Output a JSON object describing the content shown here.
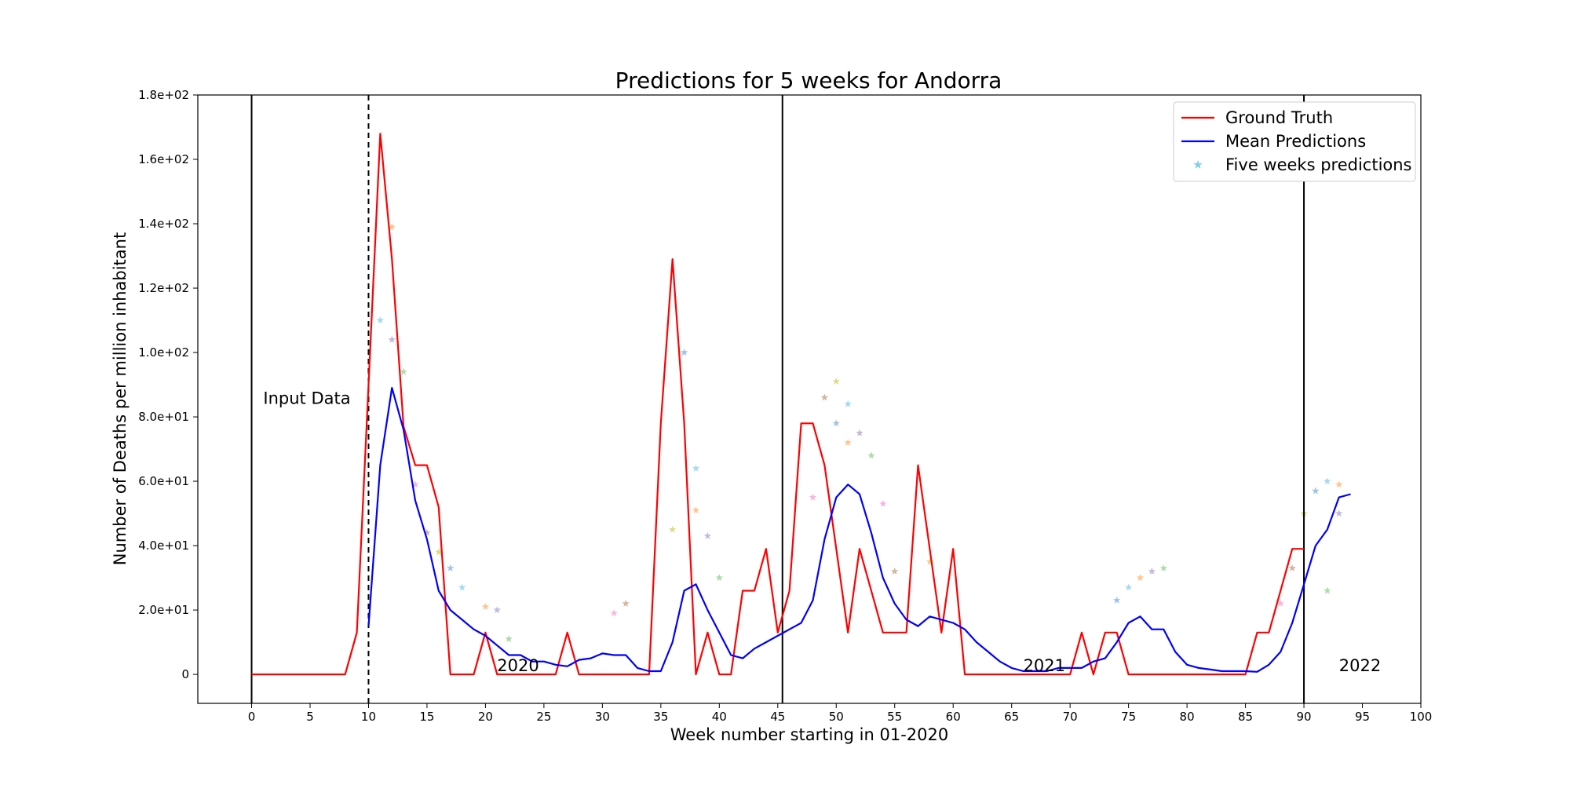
{
  "chart_data": {
    "type": "line",
    "title": "Predictions for 5 weeks for Andorra",
    "xlabel": "Week number starting in 01-2020",
    "ylabel": "Number of Deaths per million inhabitant",
    "xlim": [
      -4.6,
      100
    ],
    "ylim": [
      -9,
      180
    ],
    "x_ticks": [
      0,
      5,
      10,
      15,
      20,
      25,
      30,
      35,
      40,
      45,
      50,
      55,
      60,
      65,
      70,
      75,
      80,
      85,
      90,
      95,
      100
    ],
    "y_ticks": [
      {
        "value": 0,
        "label": "0"
      },
      {
        "value": 20,
        "label": "2.0e+01"
      },
      {
        "value": 40,
        "label": "4.0e+01"
      },
      {
        "value": 60,
        "label": "6.0e+01"
      },
      {
        "value": 80,
        "label": "8.0e+01"
      },
      {
        "value": 100,
        "label": "1.0e+02"
      },
      {
        "value": 120,
        "label": "1.2e+02"
      },
      {
        "value": 140,
        "label": "1.4e+02"
      },
      {
        "value": 160,
        "label": "1.6e+02"
      },
      {
        "value": 180,
        "label": "1.8e+02"
      }
    ],
    "grid": false,
    "legend_position": "top-right",
    "legend": [
      {
        "label": "Ground Truth",
        "kind": "line",
        "color": "#ff0000"
      },
      {
        "label": "Mean Predictions",
        "kind": "line",
        "color": "#0000ff"
      },
      {
        "label": "Five weeks predictions",
        "kind": "star",
        "color": "#87ceeb"
      }
    ],
    "vertical_lines": [
      {
        "x": 0,
        "style": "solid"
      },
      {
        "x": 10,
        "style": "dashed"
      },
      {
        "x": 45.4,
        "style": "solid"
      },
      {
        "x": 90,
        "style": "solid"
      }
    ],
    "annotations": [
      {
        "text": "Input Data",
        "x": 1,
        "y": 84
      },
      {
        "text": "2020",
        "x": 21,
        "y": 1
      },
      {
        "text": "2021",
        "x": 66,
        "y": 1
      },
      {
        "text": "2022",
        "x": 93,
        "y": 1
      }
    ],
    "series": [
      {
        "name": "Ground Truth",
        "color": "#ff0000",
        "x": [
          0,
          1,
          2,
          3,
          4,
          5,
          6,
          7,
          8,
          9,
          10,
          11,
          12,
          13,
          14,
          15,
          16,
          17,
          18,
          19,
          20,
          21,
          22,
          23,
          24,
          25,
          26,
          27,
          28,
          29,
          30,
          31,
          32,
          33,
          34,
          35,
          36,
          37,
          38,
          39,
          40,
          41,
          42,
          43,
          44,
          45,
          46,
          47,
          48,
          49,
          50,
          51,
          52,
          53,
          54,
          55,
          56,
          57,
          58,
          59,
          60,
          61,
          62,
          63,
          64,
          65,
          66,
          67,
          68,
          69,
          70,
          71,
          72,
          73,
          74,
          75,
          76,
          77,
          78,
          79,
          80,
          81,
          82,
          83,
          84,
          85,
          86,
          87,
          88,
          89,
          90
        ],
        "values": [
          0,
          0,
          0,
          0,
          0,
          0,
          0,
          0,
          0,
          13,
          90,
          168,
          129,
          77,
          65,
          65,
          52,
          0,
          0,
          0,
          13,
          0,
          0,
          0,
          0,
          0,
          0,
          13,
          0,
          0,
          0,
          0,
          0,
          0,
          0,
          78,
          129,
          78,
          0,
          13,
          0,
          0,
          26,
          26,
          39,
          13,
          26,
          78,
          78,
          65,
          39,
          13,
          39,
          26,
          13,
          13,
          13,
          65,
          39,
          13,
          39,
          0,
          0,
          0,
          0,
          0,
          0,
          0,
          0,
          0,
          0,
          13,
          0,
          13,
          13,
          0,
          0,
          0,
          0,
          0,
          0,
          0,
          0,
          0,
          0,
          0,
          13,
          13,
          26,
          39,
          39
        ]
      },
      {
        "name": "Mean Predictions",
        "color": "#0000ff",
        "x": [
          10,
          11,
          12,
          13,
          14,
          15,
          16,
          17,
          18,
          19,
          20,
          21,
          22,
          23,
          24,
          25,
          26,
          27,
          28,
          29,
          30,
          31,
          32,
          33,
          34,
          35,
          36,
          37,
          38,
          39,
          40,
          41,
          42,
          43,
          44,
          45,
          46,
          47,
          48,
          49,
          50,
          51,
          52,
          53,
          54,
          55,
          56,
          57,
          58,
          59,
          60,
          61,
          62,
          63,
          64,
          65,
          66,
          67,
          68,
          69,
          70,
          71,
          72,
          73,
          74,
          75,
          76,
          77,
          78,
          79,
          80,
          81,
          82,
          83,
          84,
          85,
          86,
          87,
          88,
          89,
          90,
          91,
          92,
          93,
          94
        ],
        "values": [
          15,
          65,
          89,
          76,
          54,
          42,
          26,
          20,
          17,
          14,
          12,
          9,
          6,
          6,
          4,
          4,
          3,
          2.5,
          4.5,
          5,
          6.5,
          6,
          6,
          2,
          1,
          1,
          10,
          26,
          28,
          20,
          13,
          6,
          5,
          8,
          10,
          12,
          14,
          16,
          23,
          42,
          55,
          59,
          56,
          44,
          30,
          22,
          17,
          15,
          18,
          17,
          16,
          14,
          10,
          7,
          4,
          2,
          1,
          1,
          1,
          2,
          2,
          2,
          4,
          5,
          10,
          16,
          18,
          14,
          14,
          7,
          3,
          2,
          1.5,
          1,
          1,
          1,
          0.8,
          3,
          7,
          16,
          28,
          40,
          45,
          55,
          56
        ]
      }
    ],
    "five_weeks_predictions_sample": [
      {
        "x": 11,
        "y": 110
      },
      {
        "x": 12,
        "y": 139
      },
      {
        "x": 12,
        "y": 104
      },
      {
        "x": 13,
        "y": 94
      },
      {
        "x": 14,
        "y": 59
      },
      {
        "x": 15,
        "y": 44
      },
      {
        "x": 16,
        "y": 38
      },
      {
        "x": 17,
        "y": 33
      },
      {
        "x": 18,
        "y": 27
      },
      {
        "x": 20,
        "y": 21
      },
      {
        "x": 21,
        "y": 20
      },
      {
        "x": 22,
        "y": 11
      },
      {
        "x": 31,
        "y": 19
      },
      {
        "x": 32,
        "y": 22
      },
      {
        "x": 36,
        "y": 45
      },
      {
        "x": 37,
        "y": 100
      },
      {
        "x": 38,
        "y": 64
      },
      {
        "x": 38,
        "y": 51
      },
      {
        "x": 39,
        "y": 43
      },
      {
        "x": 40,
        "y": 30
      },
      {
        "x": 48,
        "y": 55
      },
      {
        "x": 49,
        "y": 86
      },
      {
        "x": 50,
        "y": 91
      },
      {
        "x": 50,
        "y": 78
      },
      {
        "x": 51,
        "y": 84
      },
      {
        "x": 51,
        "y": 72
      },
      {
        "x": 52,
        "y": 75
      },
      {
        "x": 53,
        "y": 68
      },
      {
        "x": 54,
        "y": 53
      },
      {
        "x": 55,
        "y": 32
      },
      {
        "x": 58,
        "y": 35
      },
      {
        "x": 74,
        "y": 23
      },
      {
        "x": 75,
        "y": 27
      },
      {
        "x": 76,
        "y": 30
      },
      {
        "x": 77,
        "y": 32
      },
      {
        "x": 78,
        "y": 33
      },
      {
        "x": 88,
        "y": 22
      },
      {
        "x": 89,
        "y": 33
      },
      {
        "x": 90,
        "y": 50
      },
      {
        "x": 91,
        "y": 57
      },
      {
        "x": 92,
        "y": 60
      },
      {
        "x": 93,
        "y": 59
      },
      {
        "x": 93,
        "y": 50
      },
      {
        "x": 92,
        "y": 26
      }
    ]
  }
}
